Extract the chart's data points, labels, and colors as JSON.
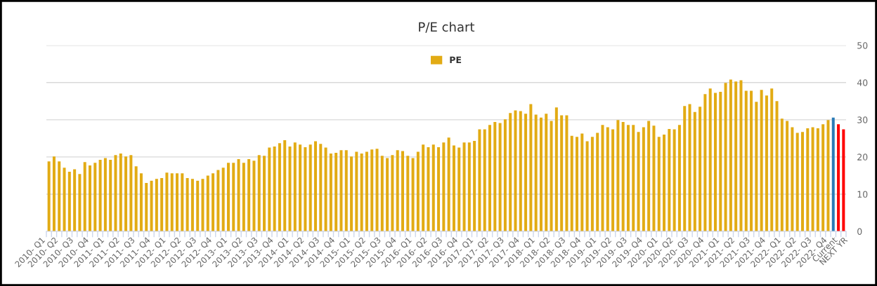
{
  "chart_data": {
    "type": "bar",
    "title": "P/E chart",
    "categories": [
      "2010- Q1",
      "2010- Q2",
      null,
      null,
      "2010- Q3",
      null,
      null,
      "2010- Q4",
      null,
      null,
      "2011- Q1",
      null,
      null,
      "2011- Q2",
      null,
      null,
      "2011- Q3",
      null,
      null,
      "2011- Q4",
      null,
      null,
      "2012- Q1",
      null,
      null,
      "2012- Q2",
      null,
      null,
      "2012- Q3",
      null,
      null,
      "2012- Q4",
      null,
      null,
      "2013- Q1",
      null,
      null,
      "2013- Q2",
      null,
      null,
      "2013- Q3",
      null,
      null,
      "2013- Q4",
      null,
      null,
      "2014- Q1",
      null,
      null,
      "2014- Q2",
      null,
      null,
      "2014- Q3",
      null,
      null,
      "2014- Q4",
      null,
      null,
      "2015- Q1",
      null,
      null,
      "2015- Q2",
      null,
      null,
      "2015- Q3",
      null,
      null,
      "2015- Q4",
      null,
      null,
      "2016- Q1",
      null,
      null,
      "2016- Q2",
      null,
      null,
      "2016- Q3",
      null,
      null,
      "2016- Q4",
      null,
      null,
      "2017- Q1",
      null,
      null,
      "2017- Q2",
      null,
      null,
      "2017- Q3",
      null,
      null,
      "2017- Q4",
      null,
      null,
      "2018- Q1",
      null,
      null,
      "2018- Q2",
      null,
      null,
      "2018- Q3",
      null,
      null,
      "2018- Q4",
      null,
      null,
      "2019- Q1",
      null,
      null,
      "2019- Q2",
      null,
      null,
      "2019- Q3",
      null,
      null,
      "2019- Q4",
      null,
      null,
      "2020- Q1",
      null,
      null,
      "2020- Q2",
      null,
      null,
      "2020- Q3",
      null,
      null,
      "2020- Q4",
      null,
      null,
      "2021- Q1",
      null,
      null,
      "2021- Q2",
      null,
      null,
      "2021- Q3",
      null,
      null,
      "2021- Q4",
      null,
      null,
      "2022- Q1",
      null,
      null,
      "2022- Q2",
      null,
      null,
      "2022- Q3",
      null,
      null,
      "2022- Q4",
      null,
      "Current",
      null,
      "NEXT YR"
    ],
    "series": [
      {
        "name": "PE",
        "color": "#e2ab14",
        "colors": [
          "#e2ab14",
          "#e2ab14",
          "#e2ab14",
          "#e2ab14",
          "#e2ab14",
          "#e2ab14",
          "#e2ab14",
          "#e2ab14",
          "#e2ab14",
          "#e2ab14",
          "#e2ab14",
          "#e2ab14",
          "#e2ab14",
          "#e2ab14",
          "#e2ab14",
          "#e2ab14",
          "#e2ab14",
          "#e2ab14",
          "#e2ab14",
          "#e2ab14",
          "#e2ab14",
          "#e2ab14",
          "#e2ab14",
          "#e2ab14",
          "#e2ab14",
          "#e2ab14",
          "#e2ab14",
          "#e2ab14",
          "#e2ab14",
          "#e2ab14",
          "#e2ab14",
          "#e2ab14",
          "#e2ab14",
          "#e2ab14",
          "#e2ab14",
          "#e2ab14",
          "#e2ab14",
          "#e2ab14",
          "#e2ab14",
          "#e2ab14",
          "#e2ab14",
          "#e2ab14",
          "#e2ab14",
          "#e2ab14",
          "#e2ab14",
          "#e2ab14",
          "#e2ab14",
          "#e2ab14",
          "#e2ab14",
          "#e2ab14",
          "#e2ab14",
          "#e2ab14",
          "#e2ab14",
          "#e2ab14",
          "#e2ab14",
          "#e2ab14",
          "#e2ab14",
          "#e2ab14",
          "#e2ab14",
          "#e2ab14",
          "#e2ab14",
          "#e2ab14",
          "#e2ab14",
          "#e2ab14",
          "#e2ab14",
          "#e2ab14",
          "#e2ab14",
          "#e2ab14",
          "#e2ab14",
          "#e2ab14",
          "#e2ab14",
          "#e2ab14",
          "#e2ab14",
          "#e2ab14",
          "#e2ab14",
          "#e2ab14",
          "#e2ab14",
          "#e2ab14",
          "#e2ab14",
          "#e2ab14",
          "#e2ab14",
          "#e2ab14",
          "#e2ab14",
          "#e2ab14",
          "#e2ab14",
          "#e2ab14",
          "#e2ab14",
          "#e2ab14",
          "#e2ab14",
          "#e2ab14",
          "#e2ab14",
          "#e2ab14",
          "#e2ab14",
          "#e2ab14",
          "#e2ab14",
          "#e2ab14",
          "#e2ab14",
          "#e2ab14",
          "#e2ab14",
          "#e2ab14",
          "#e2ab14",
          "#e2ab14",
          "#e2ab14",
          "#e2ab14",
          "#e2ab14",
          "#e2ab14",
          "#e2ab14",
          "#e2ab14",
          "#e2ab14",
          "#e2ab14",
          "#e2ab14",
          "#e2ab14",
          "#e2ab14",
          "#e2ab14",
          "#e2ab14",
          "#e2ab14",
          "#e2ab14",
          "#e2ab14",
          "#e2ab14",
          "#e2ab14",
          "#e2ab14",
          "#e2ab14",
          "#e2ab14",
          "#e2ab14",
          "#e2ab14",
          "#e2ab14",
          "#e2ab14",
          "#e2ab14",
          "#e2ab14",
          "#e2ab14",
          "#e2ab14",
          "#e2ab14",
          "#e2ab14",
          "#e2ab14",
          "#e2ab14",
          "#e2ab14",
          "#e2ab14",
          "#e2ab14",
          "#e2ab14",
          "#e2ab14",
          "#e2ab14",
          "#e2ab14",
          "#e2ab14",
          "#e2ab14",
          "#e2ab14",
          "#e2ab14",
          "#e2ab14",
          "#e2ab14",
          "#e2ab14",
          "#e2ab14",
          "#e2ab14",
          "#e2ab14",
          "#e2ab14",
          "#2b7bb6",
          "#ff0000",
          "#ff0000"
        ],
        "values": [
          18.8,
          20.1,
          18.8,
          17.1,
          16.0,
          16.7,
          15.4,
          18.6,
          17.7,
          18.4,
          19.2,
          19.7,
          19.2,
          20.5,
          20.9,
          20.1,
          20.5,
          17.5,
          15.6,
          13.0,
          13.6,
          14.1,
          14.3,
          15.8,
          15.6,
          15.6,
          15.6,
          14.3,
          14.1,
          13.6,
          14.1,
          15.0,
          15.6,
          16.5,
          17.1,
          18.4,
          18.4,
          19.4,
          18.4,
          19.4,
          19.0,
          20.5,
          20.3,
          22.5,
          22.8,
          23.7,
          24.5,
          22.8,
          23.9,
          23.3,
          22.6,
          23.3,
          24.2,
          23.5,
          22.5,
          20.9,
          21.1,
          21.8,
          21.8,
          20.1,
          21.4,
          20.9,
          21.4,
          22.0,
          22.2,
          20.3,
          19.7,
          20.5,
          21.8,
          21.6,
          20.3,
          19.7,
          21.4,
          23.3,
          22.6,
          23.3,
          22.6,
          23.9,
          25.2,
          23.1,
          22.5,
          23.9,
          23.9,
          24.3,
          27.4,
          27.4,
          28.6,
          29.4,
          29.1,
          30.1,
          31.8,
          32.5,
          32.3,
          31.6,
          34.2,
          31.4,
          30.6,
          31.6,
          29.7,
          33.3,
          31.2,
          31.2,
          25.7,
          25.4,
          26.3,
          24.2,
          25.4,
          26.5,
          28.6,
          28.0,
          27.4,
          29.9,
          29.4,
          28.6,
          28.6,
          26.7,
          28.0,
          29.7,
          28.4,
          25.4,
          26.0,
          27.5,
          27.4,
          28.6,
          33.7,
          34.2,
          32.1,
          33.5,
          36.9,
          38.4,
          37.2,
          37.5,
          39.9,
          40.8,
          40.3,
          40.6,
          37.8,
          37.8,
          34.8,
          38.0,
          36.5,
          38.4,
          35.0,
          30.3,
          29.7,
          28.0,
          26.5,
          26.7,
          27.7,
          28.0,
          27.7,
          28.8,
          29.9,
          30.6,
          28.8,
          27.4
        ]
      }
    ],
    "ylim": [
      0,
      50
    ],
    "yticks": [
      0,
      10,
      20,
      30,
      40,
      50
    ],
    "grid": "y",
    "legend": "top"
  }
}
